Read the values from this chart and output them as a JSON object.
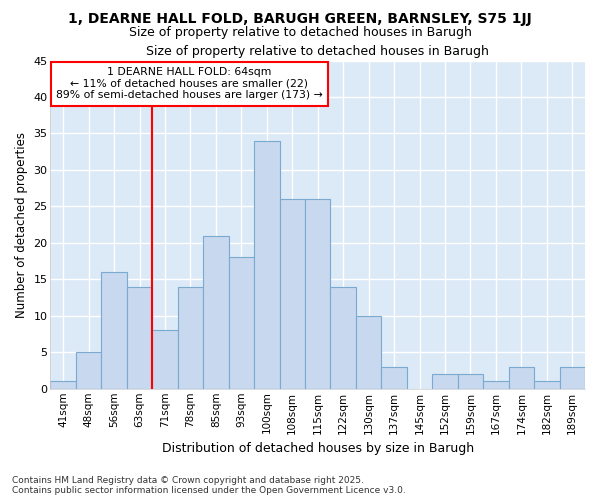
{
  "title": "1, DEARNE HALL FOLD, BARUGH GREEN, BARNSLEY, S75 1JJ",
  "subtitle": "Size of property relative to detached houses in Barugh",
  "xlabel": "Distribution of detached houses by size in Barugh",
  "ylabel": "Number of detached properties",
  "categories": [
    "41sqm",
    "48sqm",
    "56sqm",
    "63sqm",
    "71sqm",
    "78sqm",
    "85sqm",
    "93sqm",
    "100sqm",
    "108sqm",
    "115sqm",
    "122sqm",
    "130sqm",
    "137sqm",
    "145sqm",
    "152sqm",
    "159sqm",
    "167sqm",
    "174sqm",
    "182sqm",
    "189sqm"
  ],
  "values": [
    1,
    5,
    16,
    14,
    8,
    14,
    21,
    18,
    34,
    26,
    26,
    14,
    10,
    3,
    0,
    2,
    2,
    1,
    3,
    1,
    3
  ],
  "bar_color": "#c8d8ee",
  "bar_edge_color": "#7aaad0",
  "bg_color": "#dce9f7",
  "grid_color": "#ffffff",
  "fig_bg_color": "#ffffff",
  "red_line_x": 3.5,
  "annotation_title": "1 DEARNE HALL FOLD: 64sqm",
  "annotation_line1": "← 11% of detached houses are smaller (22)",
  "annotation_line2": "89% of semi-detached houses are larger (173) →",
  "footer1": "Contains HM Land Registry data © Crown copyright and database right 2025.",
  "footer2": "Contains public sector information licensed under the Open Government Licence v3.0.",
  "ylim": [
    0,
    45
  ],
  "yticks": [
    0,
    5,
    10,
    15,
    20,
    25,
    30,
    35,
    40,
    45
  ]
}
